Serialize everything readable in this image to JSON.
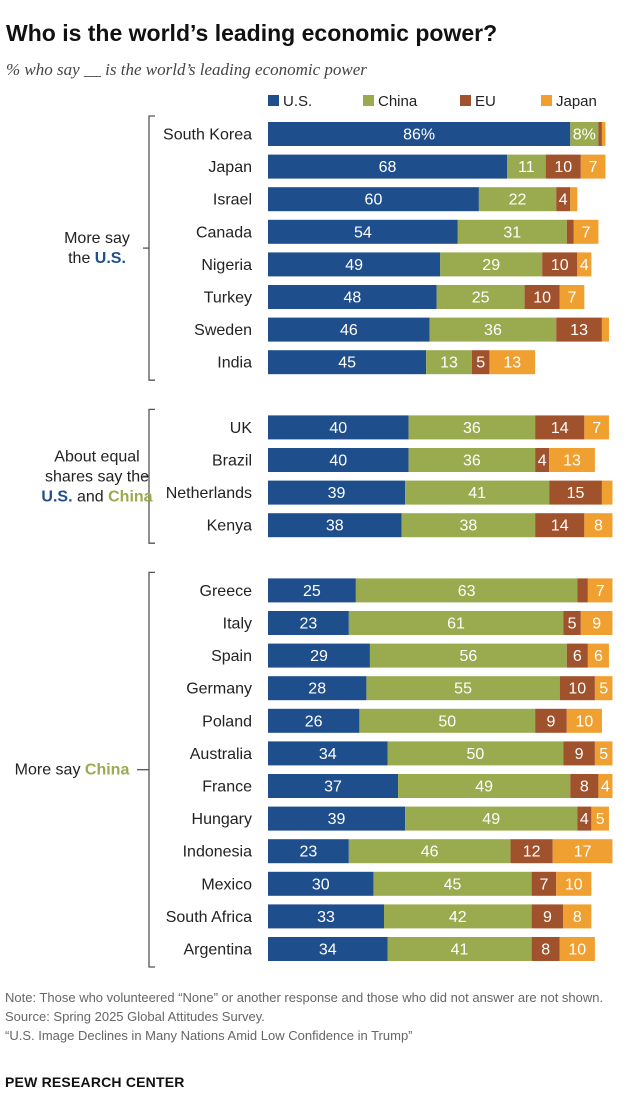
{
  "title": "Who is the world’s leading economic power?",
  "subtitle": "% who say __ is the world’s leading economic power",
  "notes": {
    "note": "Note: Those who volunteered “None” or another response and those who did not answer are not shown.",
    "source": "Source: Spring 2025 Global Attitudes Survey.",
    "report": "“U.S. Image Declines in Many Nations Amid Low Confidence in Trump”"
  },
  "brand": "PEW RESEARCH CENTER",
  "colors": {
    "us": "#1f4e8c",
    "china": "#9aaa4e",
    "eu": "#a0522d",
    "japan": "#f0a030"
  },
  "chart_data": {
    "type": "bar",
    "orientation": "horizontal",
    "stacked": true,
    "title": "Who is the world’s leading economic power?",
    "subtitle": "% who say __ is the world’s leading economic power",
    "legend_position": "top",
    "series_keys": [
      "us",
      "china",
      "eu",
      "japan"
    ],
    "legend": [
      {
        "key": "us",
        "label": "U.S."
      },
      {
        "key": "china",
        "label": "China"
      },
      {
        "key": "eu",
        "label": "EU"
      },
      {
        "key": "japan",
        "label": "Japan"
      }
    ],
    "groups": [
      {
        "label_lines": [
          [
            {
              "text": "More say",
              "accent": null
            }
          ],
          [
            {
              "text": "the ",
              "accent": null
            },
            {
              "text": "U.S.",
              "accent": "us"
            }
          ]
        ],
        "rows": [
          {
            "country": "South Korea",
            "us": 86,
            "china": 8,
            "eu": 1,
            "japan": 1,
            "labels": {
              "us": "86%",
              "china": "8%",
              "eu": "",
              "japan": ""
            }
          },
          {
            "country": "Japan",
            "us": 68,
            "china": 11,
            "eu": 10,
            "japan": 7
          },
          {
            "country": "Israel",
            "us": 60,
            "china": 22,
            "eu": 4,
            "japan": 2,
            "labels": {
              "japan": ""
            }
          },
          {
            "country": "Canada",
            "us": 54,
            "china": 31,
            "eu": 2,
            "japan": 7,
            "labels": {
              "eu": ""
            }
          },
          {
            "country": "Nigeria",
            "us": 49,
            "china": 29,
            "eu": 10,
            "japan": 4
          },
          {
            "country": "Turkey",
            "us": 48,
            "china": 25,
            "eu": 10,
            "japan": 7
          },
          {
            "country": "Sweden",
            "us": 46,
            "china": 36,
            "eu": 13,
            "japan": 2,
            "labels": {
              "japan": ""
            }
          },
          {
            "country": "India",
            "us": 45,
            "china": 13,
            "eu": 5,
            "japan": 13
          }
        ]
      },
      {
        "label_lines": [
          [
            {
              "text": "About equal",
              "accent": null
            }
          ],
          [
            {
              "text": "shares say the",
              "accent": null
            }
          ],
          [
            {
              "text": "U.S.",
              "accent": "us"
            },
            {
              "text": " and ",
              "accent": null
            },
            {
              "text": "China",
              "accent": "china"
            }
          ]
        ],
        "rows": [
          {
            "country": "UK",
            "us": 40,
            "china": 36,
            "eu": 14,
            "japan": 7
          },
          {
            "country": "Brazil",
            "us": 40,
            "china": 36,
            "eu": 4,
            "japan": 13
          },
          {
            "country": "Netherlands",
            "us": 39,
            "china": 41,
            "eu": 15,
            "japan": 3,
            "labels": {
              "japan": ""
            }
          },
          {
            "country": "Kenya",
            "us": 38,
            "china": 38,
            "eu": 14,
            "japan": 8
          }
        ]
      },
      {
        "label_lines": [
          [
            {
              "text": "More say ",
              "accent": null
            },
            {
              "text": "China",
              "accent": "china"
            }
          ]
        ],
        "rows": [
          {
            "country": "Greece",
            "us": 25,
            "china": 63,
            "eu": 3,
            "japan": 7,
            "labels": {
              "eu": ""
            }
          },
          {
            "country": "Italy",
            "us": 23,
            "china": 61,
            "eu": 5,
            "japan": 9
          },
          {
            "country": "Spain",
            "us": 29,
            "china": 56,
            "eu": 6,
            "japan": 6
          },
          {
            "country": "Germany",
            "us": 28,
            "china": 55,
            "eu": 10,
            "japan": 5
          },
          {
            "country": "Poland",
            "us": 26,
            "china": 50,
            "eu": 9,
            "japan": 10
          },
          {
            "country": "Australia",
            "us": 34,
            "china": 50,
            "eu": 9,
            "japan": 5
          },
          {
            "country": "France",
            "us": 37,
            "china": 49,
            "eu": 8,
            "japan": 4
          },
          {
            "country": "Hungary",
            "us": 39,
            "china": 49,
            "eu": 4,
            "japan": 5
          },
          {
            "country": "Indonesia",
            "us": 23,
            "china": 46,
            "eu": 12,
            "japan": 17
          },
          {
            "country": "Mexico",
            "us": 30,
            "china": 45,
            "eu": 7,
            "japan": 10
          },
          {
            "country": "South Africa",
            "us": 33,
            "china": 42,
            "eu": 9,
            "japan": 8
          },
          {
            "country": "Argentina",
            "us": 34,
            "china": 41,
            "eu": 8,
            "japan": 10
          }
        ]
      }
    ]
  }
}
